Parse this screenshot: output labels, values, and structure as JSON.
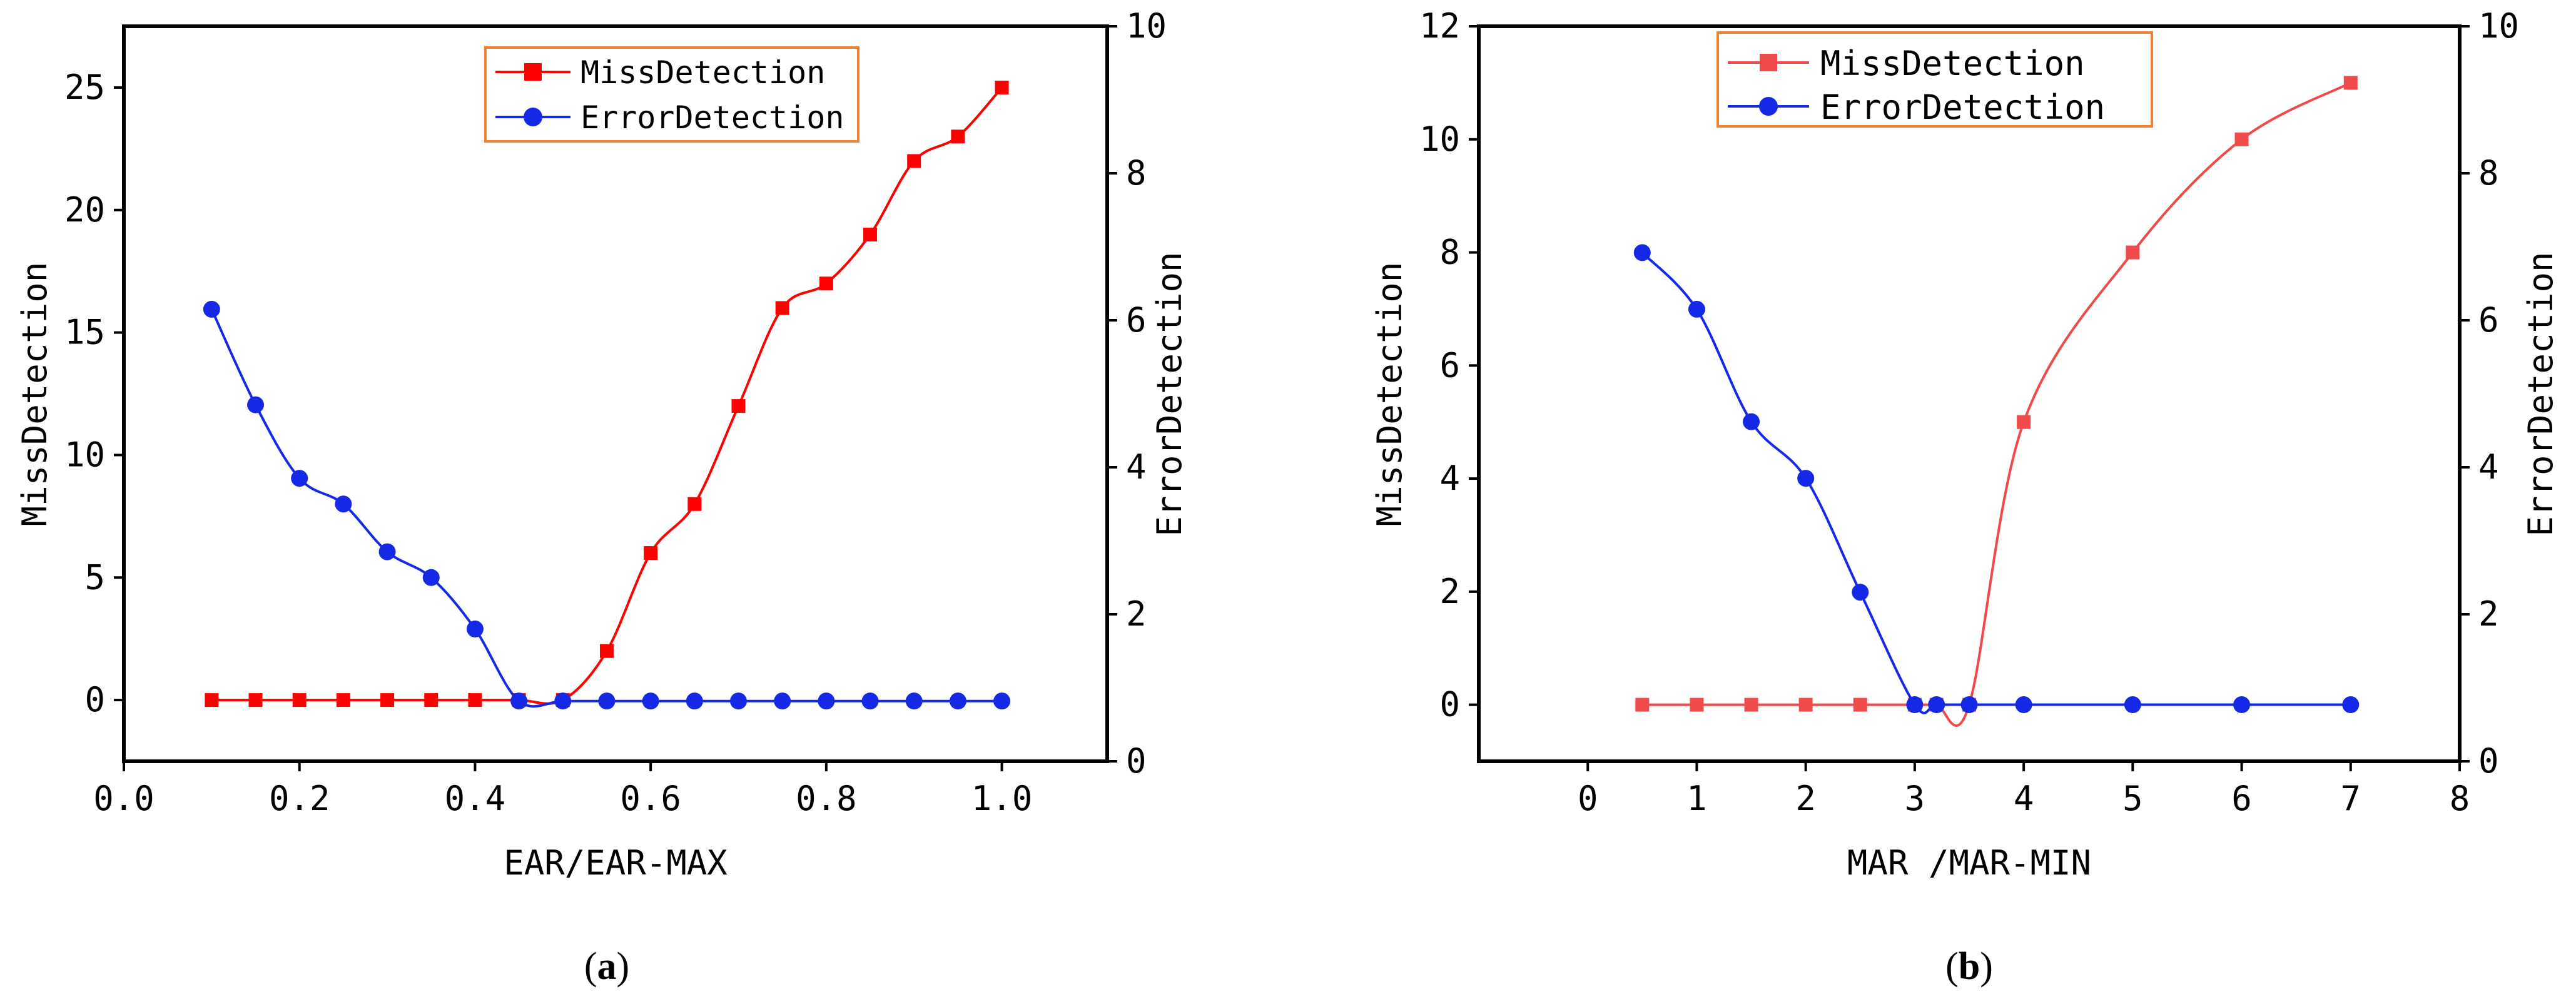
{
  "colors": {
    "miss": "#ff0000",
    "miss_b": "#f04b4b",
    "error": "#1428e6",
    "legend_border": "#f08232"
  },
  "chart_data": [
    {
      "id": "a",
      "type": "line",
      "caption_label": "a",
      "xlabel": "EAR/EAR-MAX",
      "ylabel": "MissDetection",
      "y2label": "ErrorDetection",
      "xlim": [
        0,
        1.12
      ],
      "ylim": [
        -2.5,
        27.5
      ],
      "y2lim": [
        0,
        10
      ],
      "xticks": [
        {
          "v": 0.0,
          "label": "0.0"
        },
        {
          "v": 0.2,
          "label": "0.2"
        },
        {
          "v": 0.4,
          "label": "0.4"
        },
        {
          "v": 0.6,
          "label": "0.6"
        },
        {
          "v": 0.8,
          "label": "0.8"
        },
        {
          "v": 1.0,
          "label": "1.0"
        }
      ],
      "yticks": [
        {
          "v": 0,
          "label": "0"
        },
        {
          "v": 5,
          "label": "5"
        },
        {
          "v": 10,
          "label": "10"
        },
        {
          "v": 15,
          "label": "15"
        },
        {
          "v": 20,
          "label": "20"
        },
        {
          "v": 25,
          "label": "25"
        }
      ],
      "y2ticks": [
        {
          "v": 0,
          "label": "0"
        },
        {
          "v": 2,
          "label": "2"
        },
        {
          "v": 4,
          "label": "4"
        },
        {
          "v": 6,
          "label": "6"
        },
        {
          "v": 8,
          "label": "8"
        },
        {
          "v": 10,
          "label": "10"
        }
      ],
      "series": [
        {
          "name": "MissDetection",
          "axis": "left",
          "marker": "square",
          "color_key": "miss",
          "x": [
            0.1,
            0.15,
            0.2,
            0.25,
            0.3,
            0.35,
            0.4,
            0.45,
            0.5,
            0.55,
            0.6,
            0.65,
            0.7,
            0.75,
            0.8,
            0.85,
            0.9,
            0.95,
            1.0
          ],
          "y": [
            0,
            0,
            0,
            0,
            0,
            0,
            0,
            0,
            0,
            2,
            6,
            8,
            12,
            16,
            17,
            19,
            22,
            23,
            25
          ]
        },
        {
          "name": "ErrorDetection",
          "axis": "right",
          "marker": "circle",
          "color_key": "error",
          "x": [
            0.1,
            0.15,
            0.2,
            0.25,
            0.3,
            0.35,
            0.4,
            0.45,
            0.5,
            0.55,
            0.6,
            0.65,
            0.7,
            0.75,
            0.8,
            0.85,
            0.9,
            0.95,
            1.0
          ],
          "y": [
            6.15,
            4.85,
            3.85,
            3.5,
            2.85,
            2.5,
            1.8,
            0.82,
            0.82,
            0.82,
            0.82,
            0.82,
            0.82,
            0.82,
            0.82,
            0.82,
            0.82,
            0.82,
            0.82
          ]
        }
      ],
      "legend": [
        {
          "label": "MissDetection"
        },
        {
          "label": "ErrorDetection"
        }
      ]
    },
    {
      "id": "b",
      "type": "line",
      "caption_label": "b",
      "xlabel": "MAR /MAR-MIN",
      "ylabel": "MissDetection",
      "y2label": "ErrorDetection",
      "xlim": [
        -1,
        8
      ],
      "ylim": [
        -1,
        12
      ],
      "y2lim": [
        0,
        10
      ],
      "xticks": [
        {
          "v": 0,
          "label": "0"
        },
        {
          "v": 1,
          "label": "1"
        },
        {
          "v": 2,
          "label": "2"
        },
        {
          "v": 3,
          "label": "3"
        },
        {
          "v": 4,
          "label": "4"
        },
        {
          "v": 5,
          "label": "5"
        },
        {
          "v": 6,
          "label": "6"
        },
        {
          "v": 7,
          "label": "7"
        },
        {
          "v": 8,
          "label": "8"
        }
      ],
      "yticks": [
        {
          "v": 0,
          "label": "0"
        },
        {
          "v": 2,
          "label": "2"
        },
        {
          "v": 4,
          "label": "4"
        },
        {
          "v": 6,
          "label": "6"
        },
        {
          "v": 8,
          "label": "8"
        },
        {
          "v": 10,
          "label": "10"
        },
        {
          "v": 12,
          "label": "12"
        }
      ],
      "y2ticks": [
        {
          "v": 0,
          "label": "0"
        },
        {
          "v": 2,
          "label": "2"
        },
        {
          "v": 4,
          "label": "4"
        },
        {
          "v": 6,
          "label": "6"
        },
        {
          "v": 8,
          "label": "8"
        },
        {
          "v": 10,
          "label": "10"
        }
      ],
      "series": [
        {
          "name": "MissDetection",
          "axis": "left",
          "marker": "square",
          "color_key": "miss_b",
          "x": [
            0.5,
            1,
            1.5,
            2,
            2.5,
            3,
            3.2,
            3.5,
            4,
            5,
            6,
            7
          ],
          "y": [
            0,
            0,
            0,
            0,
            0,
            0,
            0,
            0,
            5,
            8,
            10,
            11
          ]
        },
        {
          "name": "ErrorDetection",
          "axis": "right",
          "marker": "circle",
          "color_key": "error",
          "x": [
            0.5,
            1,
            1.5,
            2,
            2.5,
            3,
            3.2,
            3.5,
            4,
            5,
            6,
            7
          ],
          "y": [
            6.92,
            6.15,
            4.62,
            3.85,
            2.3,
            0.77,
            0.77,
            0.77,
            0.77,
            0.77,
            0.77,
            0.77
          ]
        }
      ],
      "legend": [
        {
          "label": "MissDetection"
        },
        {
          "label": "ErrorDetection"
        }
      ]
    }
  ]
}
